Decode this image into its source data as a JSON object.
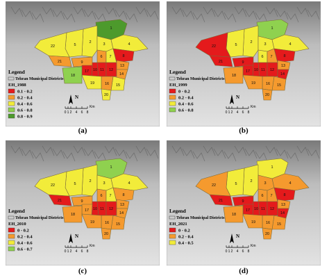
{
  "colors": {
    "red": "#e41a1c",
    "orange": "#f59a2e",
    "yellow": "#f2ec3a",
    "lightgreen": "#8fd14f",
    "darkgreen": "#4d9a2c"
  },
  "panels": [
    {
      "id": "a",
      "caption": "(a)",
      "legend_title": "Legend",
      "legend_sub": "Tehran Municipal Districts",
      "index_name": "EH_1988",
      "classes": [
        {
          "label": "0.1 - 0.2",
          "color": "red"
        },
        {
          "label": "0.2 - 0.4",
          "color": "orange"
        },
        {
          "label": "0.4 - 0.6",
          "color": "yellow"
        },
        {
          "label": "0.6 - 0.8",
          "color": "lightgreen"
        },
        {
          "label": "0.8 - 0.9",
          "color": "darkgreen"
        }
      ],
      "districts": {
        "1": "darkgreen",
        "2": "yellow",
        "3": "yellow",
        "4": "yellow",
        "5": "yellow",
        "6": "orange",
        "7": "yellow",
        "8": "red",
        "9": "orange",
        "10": "red",
        "11": "red",
        "12": "red",
        "13": "orange",
        "14": "orange",
        "15": "yellow",
        "16": "orange",
        "17": "red",
        "18": "lightgreen",
        "19": "yellow",
        "20": "yellow",
        "21": "orange",
        "22": "yellow"
      }
    },
    {
      "id": "b",
      "caption": "(b)",
      "legend_title": "Legend",
      "legend_sub": "Tehran Municipal Districts",
      "index_name": "EH_1999",
      "classes": [
        {
          "label": "0 - 0.2",
          "color": "red"
        },
        {
          "label": "0.2 - 0.4",
          "color": "orange"
        },
        {
          "label": "0.4 - 0.6",
          "color": "yellow"
        },
        {
          "label": "0.6 - 0.8",
          "color": "lightgreen"
        }
      ],
      "districts": {
        "1": "lightgreen",
        "2": "yellow",
        "3": "yellow",
        "4": "yellow",
        "5": "yellow",
        "6": "yellow",
        "7": "orange",
        "8": "red",
        "9": "red",
        "10": "red",
        "11": "red",
        "12": "red",
        "13": "orange",
        "14": "red",
        "15": "orange",
        "16": "orange",
        "17": "red",
        "18": "orange",
        "19": "orange",
        "20": "orange",
        "21": "red",
        "22": "red"
      }
    },
    {
      "id": "c",
      "caption": "(c)",
      "legend_title": "Legend",
      "legend_sub": "Tehran Municipal Districts",
      "index_name": "EH_2010",
      "classes": [
        {
          "label": "0 - 0.2",
          "color": "red"
        },
        {
          "label": "0.2 - 0.4",
          "color": "orange"
        },
        {
          "label": "0.4 - 0.6",
          "color": "yellow"
        },
        {
          "label": "0.6 - 0.7",
          "color": "lightgreen"
        }
      ],
      "districts": {
        "1": "lightgreen",
        "2": "yellow",
        "3": "yellow",
        "4": "yellow",
        "5": "yellow",
        "6": "orange",
        "7": "yellow",
        "8": "orange",
        "9": "orange",
        "10": "red",
        "11": "red",
        "12": "red",
        "13": "orange",
        "14": "orange",
        "15": "orange",
        "16": "orange",
        "17": "orange",
        "18": "orange",
        "19": "orange",
        "20": "orange",
        "21": "red",
        "22": "yellow"
      }
    },
    {
      "id": "d",
      "caption": "(d)",
      "legend_title": "Legend",
      "legend_sub": "Tehran Municipal Districts",
      "index_name": "EH_2021",
      "classes": [
        {
          "label": "0 - 0.2",
          "color": "red"
        },
        {
          "label": "0.2 - 0.4",
          "color": "orange"
        },
        {
          "label": "0.4 - 0.5",
          "color": "yellow"
        }
      ],
      "districts": {
        "1": "yellow",
        "2": "yellow",
        "3": "orange",
        "4": "orange",
        "5": "yellow",
        "6": "orange",
        "7": "orange",
        "8": "red",
        "9": "red",
        "10": "red",
        "11": "red",
        "12": "red",
        "13": "orange",
        "14": "red",
        "15": "orange",
        "16": "orange",
        "17": "red",
        "18": "orange",
        "19": "orange",
        "20": "orange",
        "21": "red",
        "22": "orange"
      }
    }
  ],
  "scale_ticks": [
    "0",
    "1",
    "2",
    "4",
    "6",
    "8"
  ],
  "scale_unit": "Km",
  "north_label": "N"
}
